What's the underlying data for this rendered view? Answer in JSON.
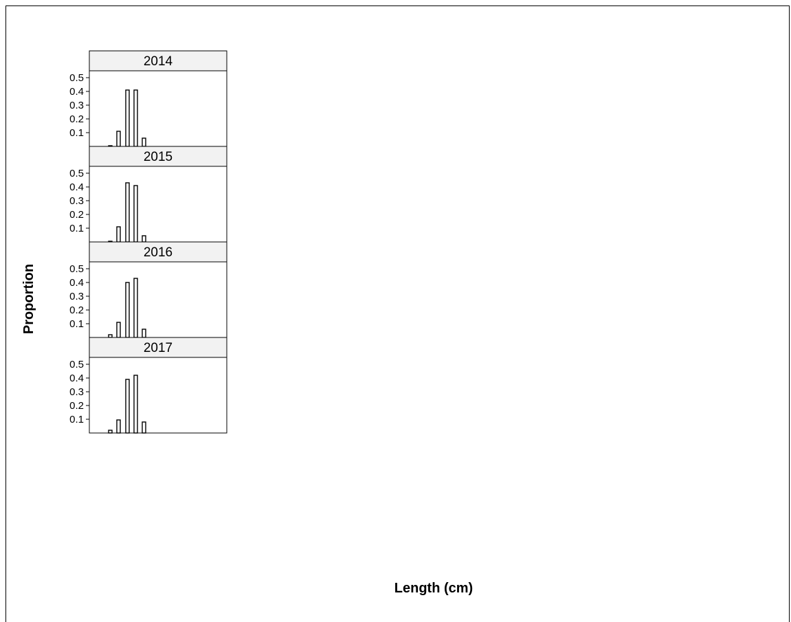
{
  "chart_data": {
    "type": "bar",
    "xlabel": "Length (cm)",
    "ylabel": "Proportion",
    "ylim": [
      0,
      0.55
    ],
    "yticks": [
      0.1,
      0.2,
      0.3,
      0.4,
      0.5
    ],
    "ytick_labels": [
      "0.1",
      "0.2",
      "0.3",
      "0.4",
      "0.5"
    ],
    "panels": [
      {
        "strip": "2014",
        "values": [
          0.005,
          0.11,
          0.41,
          0.41,
          0.06
        ]
      },
      {
        "strip": "2015",
        "values": [
          0.005,
          0.11,
          0.43,
          0.41,
          0.045
        ]
      },
      {
        "strip": "2016",
        "values": [
          0.02,
          0.11,
          0.4,
          0.43,
          0.06
        ]
      },
      {
        "strip": "2017",
        "values": [
          0.02,
          0.095,
          0.39,
          0.42,
          0.08
        ]
      }
    ]
  },
  "colors": {
    "bar_fill": "#ffffff",
    "bar_stroke": "#000000",
    "strip_bg": "#f2f2f2"
  }
}
